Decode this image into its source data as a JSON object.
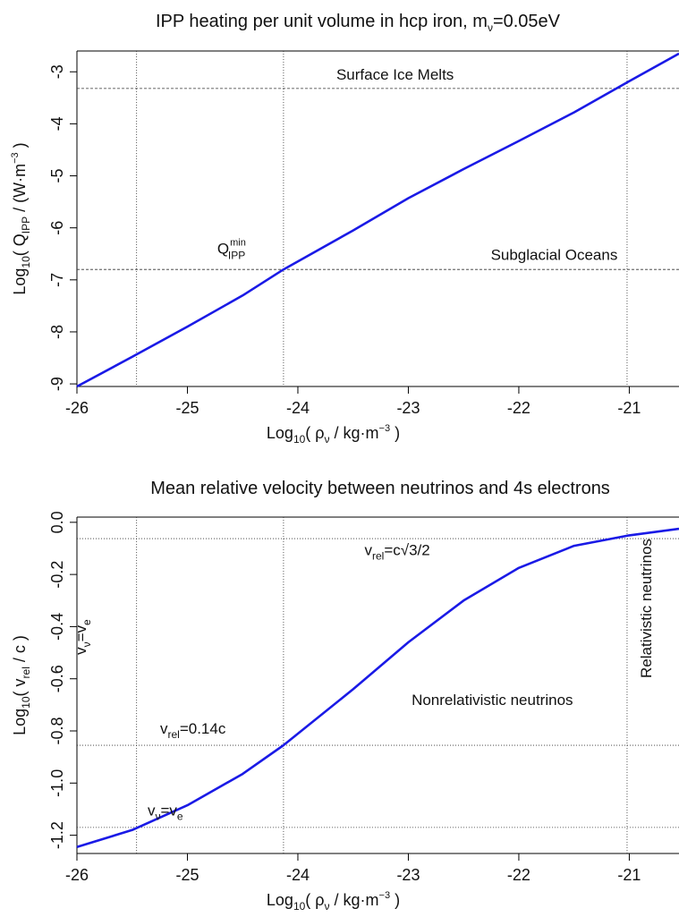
{
  "chart_data": [
    {
      "type": "line",
      "title": {
        "prefix": "IPP heating per unit volume in hcp iron, m",
        "sub": "ν",
        "suffix": "=0.05eV"
      },
      "xlabel": {
        "prefix": "Log",
        "sub": "10",
        "middle": "( ρ",
        "sub2": "ν",
        "unit": " / kg·m",
        "sup": "−3",
        "suffix": " )"
      },
      "ylabel": {
        "prefix": "Log",
        "sub": "10",
        "middle": "( Q",
        "sub2": "IPP",
        "unit": " / (W·m",
        "sup": "−3",
        "suffix": " )"
      },
      "xlim": [
        -26,
        -20.55
      ],
      "ylim": [
        -9.05,
        -2.6
      ],
      "x_ticks": [
        -26,
        -25,
        -24,
        -23,
        -22,
        -21
      ],
      "x_tick_labels": [
        "-26",
        "-25",
        "-24",
        "-23",
        "-22",
        "-21"
      ],
      "y_ticks": [
        -9,
        -8,
        -7,
        -6,
        -5,
        -4,
        -3
      ],
      "y_tick_labels": [
        "-9",
        "-8",
        "-7",
        "-6",
        "-5",
        "-4",
        "-3"
      ],
      "series": [
        {
          "color": "#1a1ae6",
          "x": [
            -26,
            -25.5,
            -25,
            -24.5,
            -24.13,
            -23.5,
            -23,
            -22.5,
            -22,
            -21.5,
            -21,
            -20.55
          ],
          "y": [
            -9.05,
            -8.48,
            -7.9,
            -7.3,
            -6.8,
            -6.05,
            -5.43,
            -4.87,
            -4.33,
            -3.78,
            -3.18,
            -2.65
          ]
        }
      ],
      "hlines": [
        {
          "y": -3.32,
          "style": "dashed",
          "label": "Surface Ice Melts",
          "label_x": -23.12,
          "label_y": -3.15
        },
        {
          "y": -6.8,
          "style": "dashed",
          "label": "Subglacial Oceans",
          "label_x": -21.68,
          "label_y": -6.62
        }
      ],
      "vlines": [
        {
          "x": -25.46,
          "style": "dotted"
        },
        {
          "x": -24.13,
          "style": "dotted"
        },
        {
          "x": -21.02,
          "style": "dotted"
        }
      ],
      "annotations": [
        {
          "text": "Q",
          "sub": "IPP",
          "sup": "min",
          "x": -24.6,
          "y": -6.5
        }
      ],
      "grid": false
    },
    {
      "type": "line",
      "title": {
        "text": "Mean relative velocity between neutrinos and 4s electrons"
      },
      "xlabel": {
        "prefix": "Log",
        "sub": "10",
        "middle": "( ρ",
        "sub2": "ν",
        "unit": " / kg·m",
        "sup": "−3",
        "suffix": " )"
      },
      "ylabel": {
        "prefix": "Log",
        "sub": "10",
        "middle": "( v",
        "sub2": "rel",
        "unit": " / c )",
        "sup": "",
        "suffix": ""
      },
      "xlim": [
        -26,
        -20.55
      ],
      "ylim": [
        -1.27,
        0.02
      ],
      "x_ticks": [
        -26,
        -25,
        -24,
        -23,
        -22,
        -21
      ],
      "x_tick_labels": [
        "-26",
        "-25",
        "-24",
        "-23",
        "-22",
        "-21"
      ],
      "y_ticks": [
        -1.2,
        -1.0,
        -0.8,
        -0.6,
        -0.4,
        -0.2,
        0.0
      ],
      "y_tick_labels": [
        "-1.2",
        "-1.0",
        "-0.8",
        "-0.6",
        "-0.4",
        "-0.2",
        "0.0"
      ],
      "series": [
        {
          "color": "#1a1ae6",
          "x": [
            -26,
            -25.5,
            -25,
            -24.5,
            -24.13,
            -23.5,
            -23,
            -22.5,
            -22,
            -21.5,
            -21,
            -20.55
          ],
          "y": [
            -1.245,
            -1.18,
            -1.085,
            -0.965,
            -0.855,
            -0.64,
            -0.46,
            -0.3,
            -0.175,
            -0.09,
            -0.05,
            -0.025
          ]
        }
      ],
      "hlines": [
        {
          "y": -0.0625,
          "style": "dotted"
        },
        {
          "y": -0.855,
          "style": "dotted"
        },
        {
          "y": -1.17,
          "style": "dotted"
        }
      ],
      "vlines": [
        {
          "x": -25.46,
          "style": "dotted"
        },
        {
          "x": -24.13,
          "style": "dotted"
        },
        {
          "x": -21.02,
          "style": "dotted"
        }
      ],
      "annotations": [
        {
          "prefix": "v",
          "sub": "rel",
          "suffix": "=c√3/2",
          "x": -23.1,
          "y": -0.125
        },
        {
          "prefix": "v",
          "sub": "rel",
          "suffix": "=0.14c",
          "x": -24.95,
          "y": -0.81
        },
        {
          "prefix": "v",
          "sub": "ν",
          "suffix": "=v",
          "sub2": "e",
          "x": -25.2,
          "y": -1.125
        },
        {
          "prefix": "v",
          "sub": "ν",
          "suffix": "=v",
          "sub2": "e",
          "x": -25.92,
          "y": -0.44,
          "rotate": -90
        },
        {
          "text": "Nonrelativistic neutrinos",
          "x": -22.24,
          "y": -0.7
        },
        {
          "text": "Relativistic neutrinos",
          "x": -20.8,
          "y": -0.33,
          "rotate": -90
        }
      ],
      "grid": false
    }
  ]
}
